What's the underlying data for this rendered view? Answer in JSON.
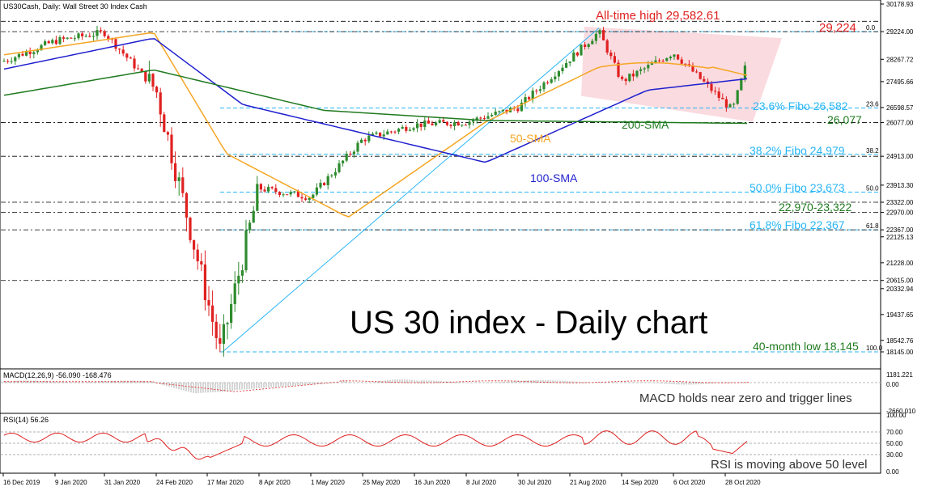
{
  "header": {
    "symbol_label": "US30Cash, Daily:  Wall Street 30 Index Cash",
    "macd_label": "MACD(12,26,9) -56.090 -168.476",
    "rsi_label": "RSI(14) 56.26"
  },
  "chart_data": [
    {
      "type": "candlestick",
      "title": "US 30 index - Daily chart",
      "ylim": [
        18145,
        30178.93
      ],
      "y_ticks": [
        "30178.93",
        "29224.00",
        "28267.72",
        "27495.66",
        "26598.57",
        "26077.00",
        "24913.00",
        "23913.30",
        "23322.00",
        "22970.00",
        "22367.00",
        "22125.13",
        "21228.00",
        "20615.00",
        "20332.94",
        "19437.65",
        "18542.76",
        "18145.00"
      ],
      "x_ticks": [
        "16 Dec 2019",
        "9 Jan 2020",
        "31 Jan 2020",
        "24 Feb 2020",
        "17 Mar 2020",
        "8 Apr 2020",
        "1 May 2020",
        "25 May 2020",
        "16 Jun 2020",
        "8 Jul 2020",
        "30 Jul 2020",
        "21 Aug 2020",
        "14 Sep 2020",
        "6 Oct 2020",
        "28 Oct 2020"
      ],
      "close_path": [
        {
          "x": "16 Dec 2019",
          "y": 28200
        },
        {
          "x": "9 Jan 2020",
          "y": 28900
        },
        {
          "x": "31 Jan 2020",
          "y": 29200
        },
        {
          "x": "24 Feb 2020",
          "y": 27200
        },
        {
          "x": "17 Mar 2020",
          "y": 18145
        },
        {
          "x": "8 Apr 2020",
          "y": 23800
        },
        {
          "x": "1 May 2020",
          "y": 23500
        },
        {
          "x": "25 May 2020",
          "y": 25500
        },
        {
          "x": "16 Jun 2020",
          "y": 26000
        },
        {
          "x": "8 Jul 2020",
          "y": 26100
        },
        {
          "x": "30 Jul 2020",
          "y": 26600
        },
        {
          "x": "21 Aug 2020",
          "y": 29224
        },
        {
          "x": "14 Sep 2020",
          "y": 27500
        },
        {
          "x": "6 Oct 2020",
          "y": 28500
        },
        {
          "x": "28 Oct 2020",
          "y": 26500
        },
        {
          "x": "28 Oct 2020",
          "y": 28400
        }
      ],
      "series": [
        {
          "name": "50-SMA",
          "color": "#f5a623"
        },
        {
          "name": "100-SMA",
          "color": "#1f1fcf"
        },
        {
          "name": "200-SMA",
          "color": "#1f7a1f"
        }
      ],
      "annotations": [
        {
          "text": "All-time high 29,582.61",
          "color": "#e02020"
        },
        {
          "text": "29,224",
          "color": "#e02020"
        },
        {
          "text": "23.6% Fibo 26,582",
          "color": "#29b6f6"
        },
        {
          "text": "26,077",
          "color": "#1f7a1f"
        },
        {
          "text": "38.2% Fibo 24,979",
          "color": "#29b6f6"
        },
        {
          "text": "50.0% Fibo 23,673",
          "color": "#29b6f6"
        },
        {
          "text": "22,970-23,322",
          "color": "#1f7a1f"
        },
        {
          "text": "61.8% Fibo 22,367",
          "color": "#29b6f6"
        },
        {
          "text": "40-month low 18,145",
          "color": "#1f7a1f"
        }
      ],
      "fibo_levels": [
        {
          "label": "0.0",
          "value": 29224
        },
        {
          "label": "23.6",
          "value": 26582
        },
        {
          "label": "38.2",
          "value": 24979
        },
        {
          "label": "50.0",
          "value": 23673
        },
        {
          "label": "61.8",
          "value": 22367
        },
        {
          "label": "100.0",
          "value": 18145
        }
      ],
      "colors": {
        "bull": "#2e8b2e",
        "bear": "#e02020",
        "fibo": "#29b6f6",
        "channel": "#f8c8d0"
      }
    },
    {
      "type": "histogram",
      "title": "MACD(12,26,9) -56.090 -168.476",
      "ylim": [
        -2660.01,
        1181.221
      ],
      "y_ticks": [
        "1181.221",
        "0.00",
        "-2660.010"
      ],
      "annotation": "MACD holds near zero and trigger lines"
    },
    {
      "type": "line",
      "title": "RSI(14) 56.26",
      "ylim": [
        0,
        100
      ],
      "y_ticks": [
        "100.00",
        "70.00",
        "50.00",
        "30.00",
        "0.00"
      ],
      "last": 56.26,
      "annotation": "RSI is moving above 50 level"
    }
  ]
}
